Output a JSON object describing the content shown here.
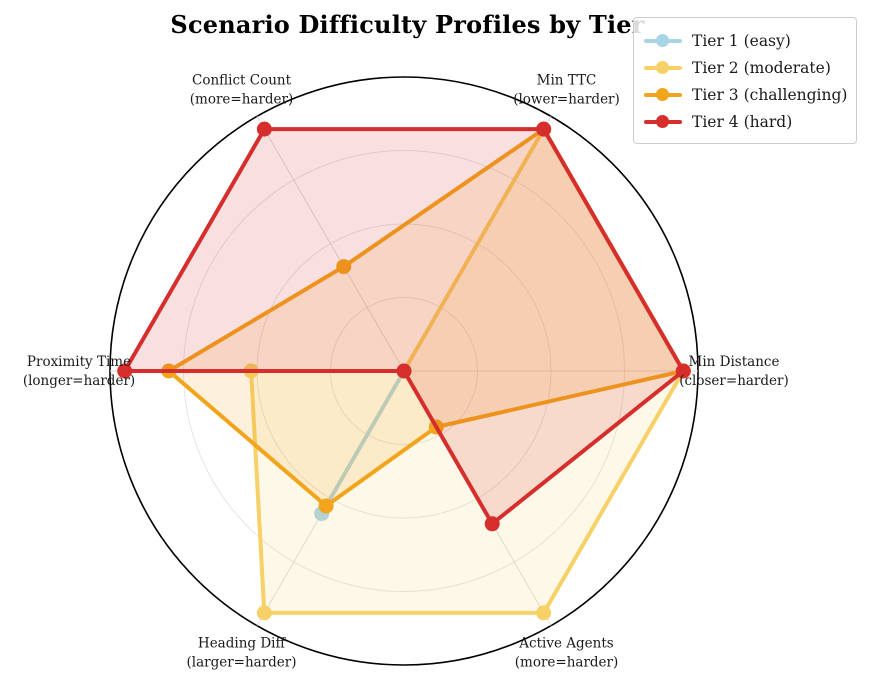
{
  "chart_data": {
    "type": "radar",
    "title": "Scenario Difficulty Profiles by Tier",
    "categories": [
      "Min Distance",
      "Min TTC",
      "Conflict Count",
      "Proximity Time",
      "Heading Diff",
      "Active Agents"
    ],
    "category_qualifiers": [
      "(closer=harder)",
      "(lower=harder)",
      "(more=harder)",
      "(longer=harder)",
      "(larger=harder)",
      "(more=harder)"
    ],
    "angles_deg": [
      0,
      60,
      120,
      180,
      240,
      300
    ],
    "rlim": [
      0,
      1
    ],
    "rings": [
      0.25,
      0.5,
      0.75,
      1.0
    ],
    "grid": true,
    "legend_position": "upper right",
    "series": [
      {
        "name": "Tier 1 (easy)",
        "color": "#A9D4E5",
        "values": [
          0.0,
          0.0,
          0.0,
          0.0,
          0.56,
          0.0
        ]
      },
      {
        "name": "Tier 2 (moderate)",
        "color": "#F7D168",
        "values": [
          0.95,
          0.95,
          0.0,
          0.52,
          0.95,
          0.95
        ]
      },
      {
        "name": "Tier 3 (challenging)",
        "color": "#F2A41D",
        "values": [
          0.95,
          0.95,
          0.41,
          0.8,
          0.53,
          0.22
        ]
      },
      {
        "name": "Tier 4 (hard)",
        "color": "#D62E2C",
        "values": [
          0.95,
          0.95,
          0.95,
          0.95,
          0.0,
          0.6
        ]
      }
    ],
    "colors": {
      "outer_circle": "#000000",
      "grid_ring": "#e4e4e4",
      "spoke": "#dcdcdc",
      "label_text": "#1a1a1a"
    }
  }
}
